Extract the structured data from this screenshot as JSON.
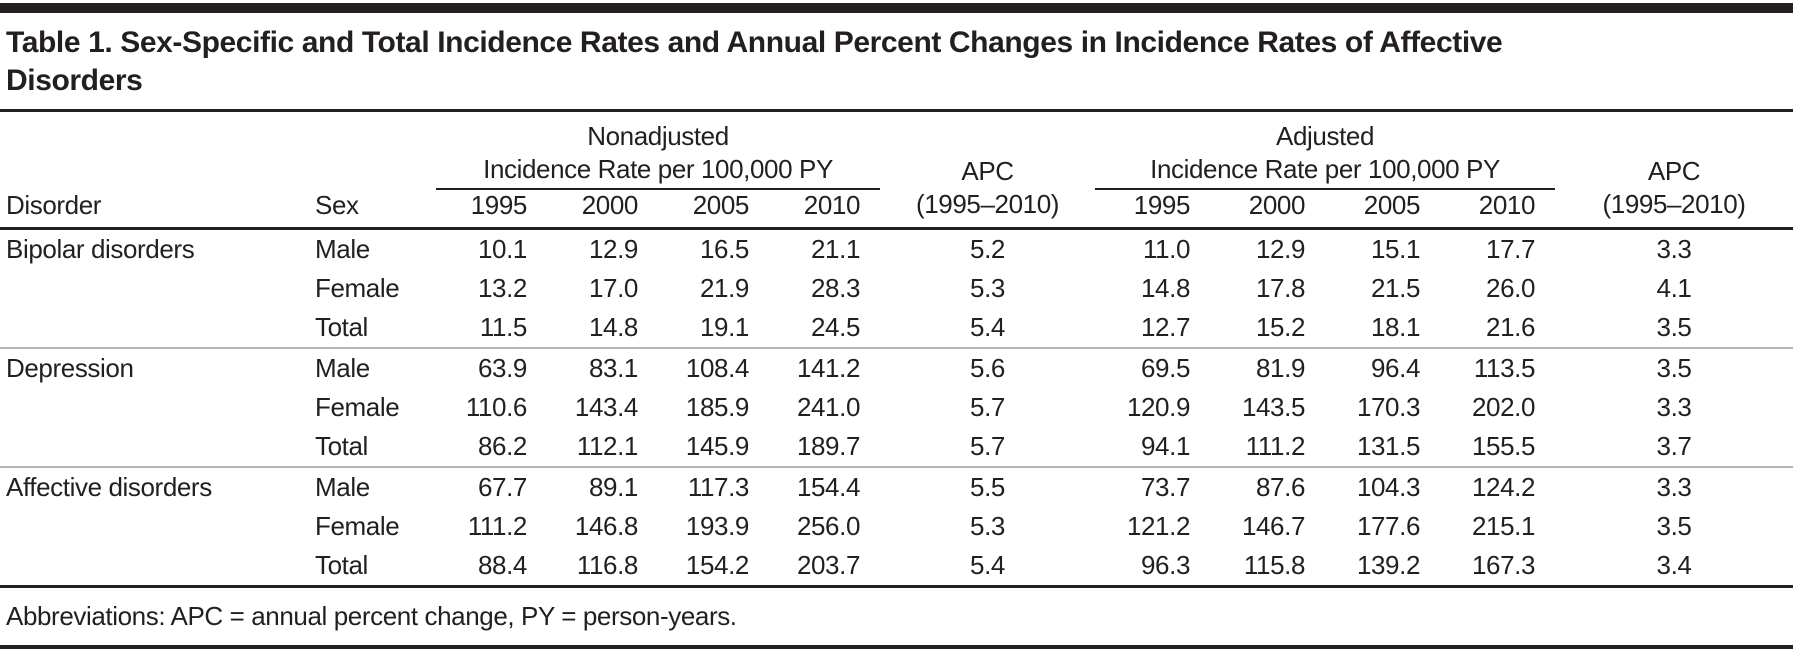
{
  "title": "Table 1. Sex-Specific and Total Incidence Rates and Annual Percent Changes in Incidence Rates of Affective Disorders",
  "header": {
    "disorder": "Disorder",
    "sex": "Sex",
    "nonadjusted_group": "Nonadjusted",
    "adjusted_group": "Adjusted",
    "group_subtitle": "Incidence Rate per 100,000 PY",
    "apc_label": "APC",
    "apc_range": "(1995–2010)",
    "years": [
      "1995",
      "2000",
      "2005",
      "2010"
    ]
  },
  "rows": [
    {
      "disorder": "Bipolar disorders",
      "sex": "Male",
      "nonadjusted": [
        "10.1",
        "12.9",
        "16.5",
        "21.1"
      ],
      "apc_nonadjusted": "5.2",
      "adjusted": [
        "11.0",
        "12.9",
        "15.1",
        "17.7"
      ],
      "apc_adjusted": "3.3",
      "group_start": false
    },
    {
      "disorder": "",
      "sex": "Female",
      "nonadjusted": [
        "13.2",
        "17.0",
        "21.9",
        "28.3"
      ],
      "apc_nonadjusted": "5.3",
      "adjusted": [
        "14.8",
        "17.8",
        "21.5",
        "26.0"
      ],
      "apc_adjusted": "4.1",
      "group_start": false
    },
    {
      "disorder": "",
      "sex": "Total",
      "nonadjusted": [
        "11.5",
        "14.8",
        "19.1",
        "24.5"
      ],
      "apc_nonadjusted": "5.4",
      "adjusted": [
        "12.7",
        "15.2",
        "18.1",
        "21.6"
      ],
      "apc_adjusted": "3.5",
      "group_start": false
    },
    {
      "disorder": "Depression",
      "sex": "Male",
      "nonadjusted": [
        "63.9",
        "83.1",
        "108.4",
        "141.2"
      ],
      "apc_nonadjusted": "5.6",
      "adjusted": [
        "69.5",
        "81.9",
        "96.4",
        "113.5"
      ],
      "apc_adjusted": "3.5",
      "group_start": true
    },
    {
      "disorder": "",
      "sex": "Female",
      "nonadjusted": [
        "110.6",
        "143.4",
        "185.9",
        "241.0"
      ],
      "apc_nonadjusted": "5.7",
      "adjusted": [
        "120.9",
        "143.5",
        "170.3",
        "202.0"
      ],
      "apc_adjusted": "3.3",
      "group_start": false
    },
    {
      "disorder": "",
      "sex": "Total",
      "nonadjusted": [
        "86.2",
        "112.1",
        "145.9",
        "189.7"
      ],
      "apc_nonadjusted": "5.7",
      "adjusted": [
        "94.1",
        "111.2",
        "131.5",
        "155.5"
      ],
      "apc_adjusted": "3.7",
      "group_start": false
    },
    {
      "disorder": "Affective disorders",
      "sex": "Male",
      "nonadjusted": [
        "67.7",
        "89.1",
        "117.3",
        "154.4"
      ],
      "apc_nonadjusted": "5.5",
      "adjusted": [
        "73.7",
        "87.6",
        "104.3",
        "124.2"
      ],
      "apc_adjusted": "3.3",
      "group_start": true
    },
    {
      "disorder": "",
      "sex": "Female",
      "nonadjusted": [
        "111.2",
        "146.8",
        "193.9",
        "256.0"
      ],
      "apc_nonadjusted": "5.3",
      "adjusted": [
        "121.2",
        "146.7",
        "177.6",
        "215.1"
      ],
      "apc_adjusted": "3.5",
      "group_start": false
    },
    {
      "disorder": "",
      "sex": "Total",
      "nonadjusted": [
        "88.4",
        "116.8",
        "154.2",
        "203.7"
      ],
      "apc_nonadjusted": "5.4",
      "adjusted": [
        "96.3",
        "115.8",
        "139.2",
        "167.3"
      ],
      "apc_adjusted": "3.4",
      "group_start": false
    }
  ],
  "footnote": "Abbreviations: APC = annual percent change, PY = person-years."
}
